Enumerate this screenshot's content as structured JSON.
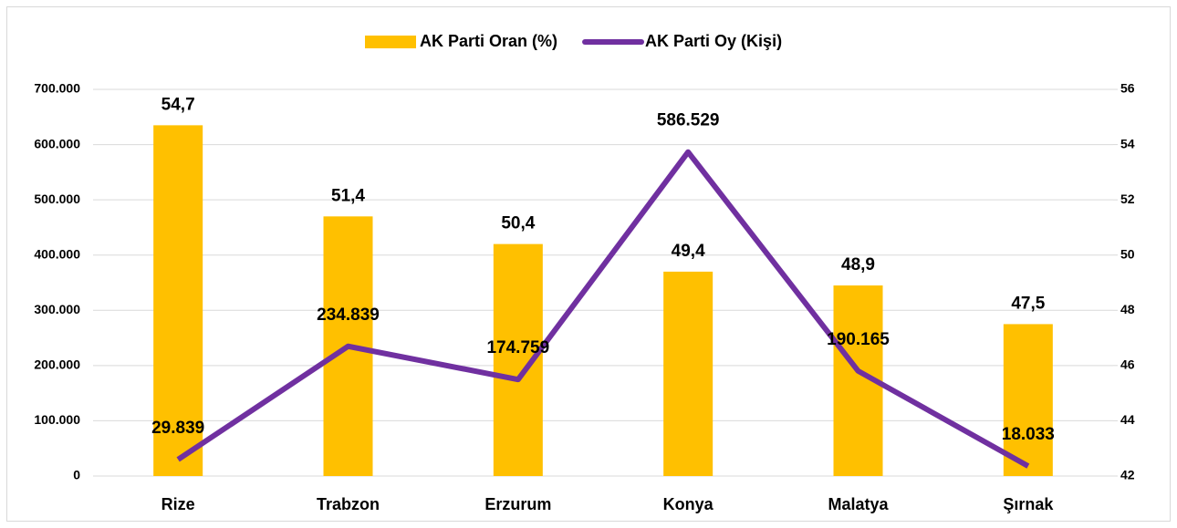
{
  "chart_data": {
    "type": "bar-line",
    "legend": "top",
    "grid": true,
    "categories": [
      "Rize",
      "Trabzon",
      "Erzurum",
      "Konya",
      "Malatya",
      "Şırnak"
    ],
    "series": [
      {
        "name": "AK Parti Oran (%)",
        "type": "bar",
        "axis": "y2",
        "color": "#FFC000",
        "values": [
          54.7,
          51.4,
          50.4,
          49.4,
          48.9,
          47.5
        ],
        "value_labels": [
          "54,7",
          "51,4",
          "50,4",
          "49,4",
          "48,9",
          "47,5"
        ]
      },
      {
        "name": "AK Parti Oy (Kişi)",
        "type": "line",
        "axis": "y",
        "color": "#7030A0",
        "values": [
          29839,
          234839,
          174759,
          586529,
          190165,
          18033
        ],
        "value_labels": [
          "29.839",
          "234.839",
          "174.759",
          "586.529",
          "190.165",
          "18.033"
        ]
      }
    ],
    "ylim": [
      0,
      700000
    ],
    "yticks": [
      0,
      {
        "value": 100000,
        "label": "100.000"
      },
      {
        "value": 200000,
        "label": "200.000"
      },
      {
        "value": 300000,
        "label": "300.000"
      },
      {
        "value": 400000,
        "label": "400.000"
      },
      {
        "value": 500000,
        "label": "500.000"
      },
      {
        "value": 600000,
        "label": "600.000"
      },
      {
        "value": 700000,
        "label": "700.000"
      }
    ],
    "y2lim": [
      42,
      56
    ],
    "y2ticks": [
      42,
      44,
      46,
      48,
      50,
      52,
      54,
      56
    ]
  }
}
